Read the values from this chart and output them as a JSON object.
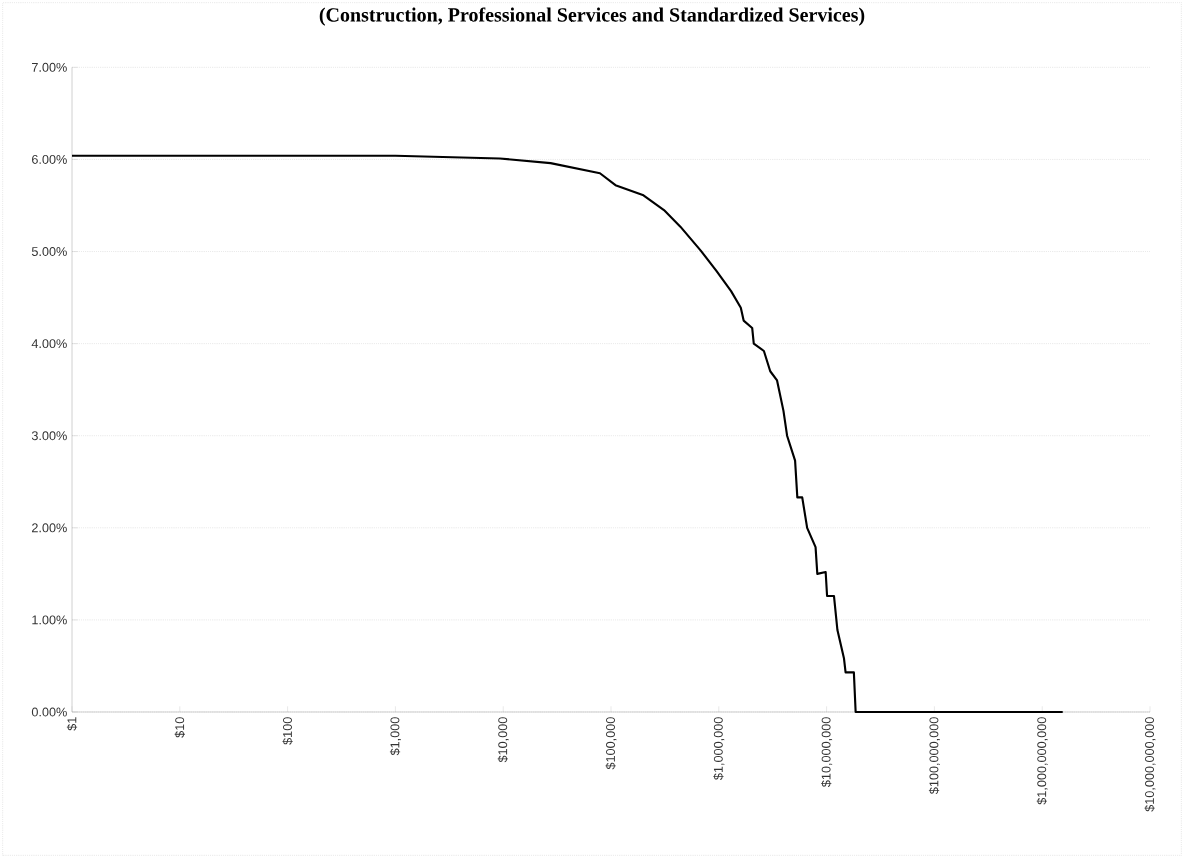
{
  "chart_data": {
    "type": "line",
    "title": "(Construction, Professional Services and Standardized Services)",
    "log": "x",
    "grid": "y",
    "marker": "none",
    "line_style": "solid",
    "x": [
      1,
      1000,
      9300,
      27500,
      79000,
      110000,
      200000,
      310000,
      440000,
      680000,
      950000,
      1300000,
      1600000,
      1700000,
      2040000,
      2110000,
      2620000,
      3000000,
      3470000,
      3980000,
      4300000,
      5100000,
      5350000,
      5940000,
      6600000,
      7900000,
      8200000,
      9800000,
      10100000,
      11700000,
      12600000,
      14500000,
      15000000,
      17900000,
      18600000,
      1550000000
    ],
    "series": [
      {
        "color": "#000000",
        "values": [
          6.04,
          6.04,
          6.01,
          5.96,
          5.85,
          5.72,
          5.61,
          5.45,
          5.27,
          5.01,
          4.79,
          4.57,
          4.39,
          4.25,
          4.17,
          4.0,
          3.92,
          3.7,
          3.6,
          3.27,
          3.0,
          2.73,
          2.33,
          2.33,
          2.0,
          1.79,
          1.5,
          1.52,
          1.26,
          1.26,
          0.89,
          0.58,
          0.43,
          0.43,
          0,
          0
        ]
      }
    ],
    "xlim": [
      1,
      10000000000
    ],
    "xticks": [
      {
        "value": 1,
        "label": "$1"
      },
      {
        "value": 10,
        "label": "$10"
      },
      {
        "value": 100,
        "label": "$100"
      },
      {
        "value": 1000,
        "label": "$1,000"
      },
      {
        "value": 10000,
        "label": "$10,000"
      },
      {
        "value": 100000,
        "label": "$100,000"
      },
      {
        "value": 1000000,
        "label": "$1,000,000"
      },
      {
        "value": 10000000,
        "label": "$10,000,000"
      },
      {
        "value": 100000000,
        "label": "$100,000,000"
      },
      {
        "value": 1000000000,
        "label": "$1,000,000,000"
      },
      {
        "value": 10000000000,
        "label": "$10,000,000,000"
      }
    ],
    "ylim": [
      0,
      7
    ],
    "yticks": [
      {
        "value": 0,
        "label": "0.00%"
      },
      {
        "value": 1,
        "label": "1.00%"
      },
      {
        "value": 2,
        "label": "2.00%"
      },
      {
        "value": 3,
        "label": "3.00%"
      },
      {
        "value": 4,
        "label": "4.00%"
      },
      {
        "value": 5,
        "label": "5.00%"
      },
      {
        "value": 6,
        "label": "6.00%"
      },
      {
        "value": 7,
        "label": "7.00%"
      }
    ]
  }
}
